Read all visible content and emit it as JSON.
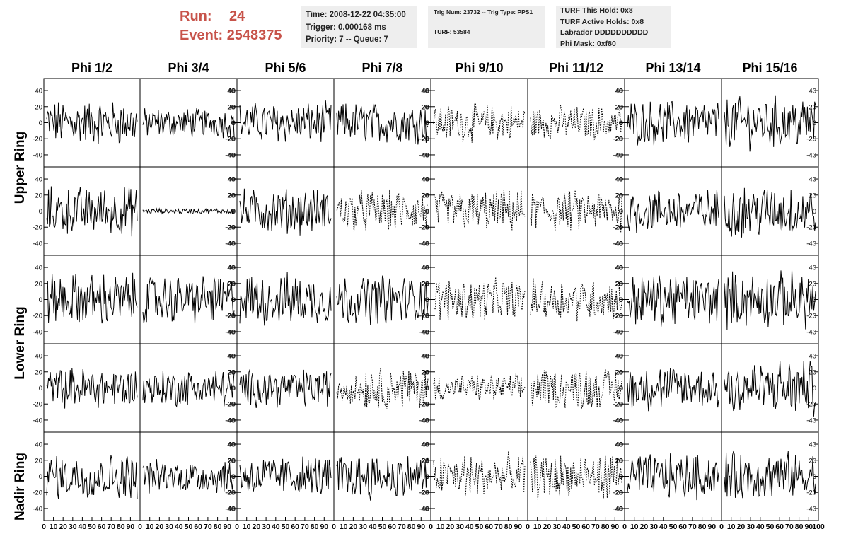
{
  "run_info": {
    "run_label": "Run:",
    "run_value": "24",
    "event_label": "Event:",
    "event_value": "2548375",
    "color": "#c7534a"
  },
  "time_box": {
    "time": "Time: 2008-12-22 04:35:00",
    "trigger": "Trigger: 0.000168 ms",
    "priority": "Priority: 7 -- Queue: 7"
  },
  "trig_box": {
    "trig": "Trig Num: 23732 -- Trig Type: PPS1",
    "turf": "TURF: 53584"
  },
  "turf_box": {
    "this_hold": "TURF This Hold: 0x8",
    "active_holds": "TURF Active Holds: 0x8",
    "labrador": "Labrador DDDDDDDDDD",
    "phi_mask": "Phi Mask: 0xf80"
  },
  "phi_labels": [
    "Phi 1/2",
    "Phi 3/4",
    "Phi 5/6",
    "Phi 7/8",
    "Phi 9/10",
    "Phi 11/12",
    "Phi 13/14",
    "Phi 15/16"
  ],
  "ring_labels": [
    "Upper Ring",
    "Lower Ring",
    "Nadir Ring"
  ],
  "chart_data": {
    "type": "line",
    "description_grid": "5 rows x 8 columns of waveform panels",
    "xlim": [
      0,
      100
    ],
    "ylim": [
      -55,
      55
    ],
    "y_ticks": [
      "40",
      "20",
      "0",
      "-20",
      "-40"
    ],
    "x_ticks": [
      "0",
      "10",
      "20",
      "30",
      "40",
      "50",
      "60",
      "70",
      "80",
      "90",
      "100"
    ],
    "grid": false,
    "amplitudes": [
      [
        24,
        16,
        22,
        22,
        20,
        18,
        24,
        28
      ],
      [
        26,
        3,
        24,
        22,
        22,
        22,
        24,
        28
      ],
      [
        28,
        26,
        28,
        26,
        22,
        22,
        28,
        30
      ],
      [
        22,
        20,
        20,
        22,
        14,
        22,
        24,
        30
      ],
      [
        24,
        18,
        22,
        24,
        24,
        24,
        24,
        26
      ]
    ],
    "dashed": [
      [
        false,
        false,
        false,
        false,
        true,
        true,
        false,
        false
      ],
      [
        false,
        false,
        false,
        true,
        true,
        true,
        false,
        false
      ],
      [
        false,
        false,
        false,
        false,
        true,
        true,
        false,
        false
      ],
      [
        false,
        false,
        false,
        true,
        true,
        true,
        false,
        false
      ],
      [
        false,
        false,
        false,
        false,
        true,
        true,
        false,
        false
      ]
    ]
  }
}
